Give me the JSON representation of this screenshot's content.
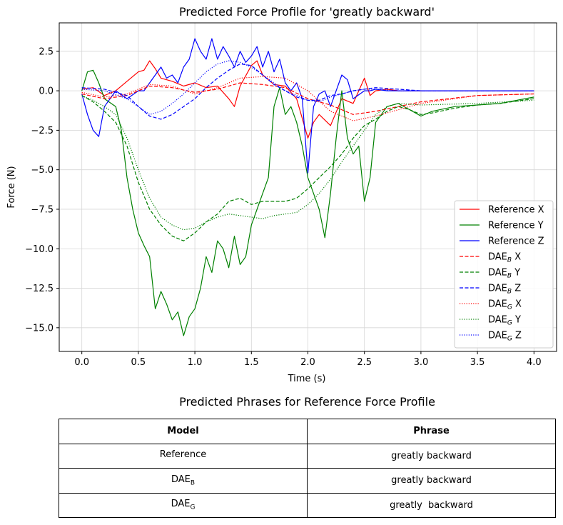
{
  "chart_data": {
    "type": "line",
    "title": "Predicted Force Profile for 'greatly backward'",
    "xlabel": "Time (s)",
    "ylabel": "Force (N)",
    "xlim": [
      -0.2,
      4.2
    ],
    "ylim": [
      -16.5,
      4.3
    ],
    "xticks": [
      0.0,
      0.5,
      1.0,
      1.5,
      2.0,
      2.5,
      3.0,
      3.5,
      4.0
    ],
    "xtick_labels": [
      "0.0",
      "0.5",
      "1.0",
      "1.5",
      "2.0",
      "2.5",
      "3.0",
      "3.5",
      "4.0"
    ],
    "yticks": [
      2.5,
      0.0,
      -2.5,
      -5.0,
      -7.5,
      -10.0,
      -12.5,
      -15.0
    ],
    "ytick_labels": [
      "2.5",
      "0.0",
      "−2.5",
      "−5.0",
      "−7.5",
      "−10.0",
      "−12.5",
      "−15.0"
    ],
    "grid": true,
    "legend_position": "lower-right",
    "series": [
      {
        "name": "Reference X",
        "name_base": "Reference X",
        "name_sub": "",
        "name_suffix": "",
        "color": "#ff0000",
        "style": "solid",
        "x": [
          0.0,
          0.1,
          0.2,
          0.3,
          0.4,
          0.5,
          0.55,
          0.6,
          0.65,
          0.7,
          0.8,
          0.9,
          1.0,
          1.1,
          1.2,
          1.3,
          1.35,
          1.4,
          1.5,
          1.55,
          1.6,
          1.7,
          1.8,
          1.9,
          2.0,
          2.05,
          2.1,
          2.2,
          2.3,
          2.4,
          2.5,
          2.55,
          2.6,
          2.7,
          2.8,
          3.0,
          3.5,
          4.0
        ],
        "y": [
          0.1,
          0.2,
          -0.3,
          0.0,
          0.6,
          1.2,
          1.3,
          1.9,
          1.4,
          0.8,
          0.6,
          0.3,
          0.5,
          0.2,
          0.3,
          -0.5,
          -1.0,
          0.3,
          1.6,
          1.9,
          1.0,
          0.4,
          0.3,
          -0.5,
          -3.0,
          -2.0,
          -1.5,
          -2.2,
          -0.5,
          -0.8,
          0.8,
          -0.3,
          0.0,
          0.1,
          0.0,
          0.0,
          0.0,
          0.0
        ]
      },
      {
        "name": "Reference Y",
        "name_base": "Reference Y",
        "name_sub": "",
        "name_suffix": "",
        "color": "#008000",
        "style": "solid",
        "x": [
          0.0,
          0.05,
          0.1,
          0.15,
          0.2,
          0.3,
          0.35,
          0.4,
          0.45,
          0.5,
          0.55,
          0.6,
          0.65,
          0.7,
          0.75,
          0.8,
          0.85,
          0.9,
          0.95,
          1.0,
          1.05,
          1.1,
          1.15,
          1.2,
          1.25,
          1.3,
          1.35,
          1.4,
          1.45,
          1.5,
          1.55,
          1.6,
          1.65,
          1.7,
          1.75,
          1.8,
          1.85,
          1.9,
          1.95,
          2.0,
          2.05,
          2.1,
          2.15,
          2.2,
          2.25,
          2.3,
          2.35,
          2.4,
          2.45,
          2.5,
          2.55,
          2.6,
          2.7,
          2.8,
          2.9,
          3.0,
          3.1,
          3.3,
          3.5,
          3.7,
          4.0
        ],
        "y": [
          0.0,
          1.2,
          1.3,
          0.5,
          -0.5,
          -1.0,
          -2.5,
          -5.5,
          -7.5,
          -9.0,
          -9.8,
          -10.5,
          -13.8,
          -12.7,
          -13.5,
          -14.5,
          -14.0,
          -15.5,
          -14.3,
          -13.8,
          -12.5,
          -10.5,
          -11.5,
          -9.5,
          -10.0,
          -11.2,
          -9.2,
          -11.0,
          -10.5,
          -8.5,
          -7.5,
          -6.5,
          -5.5,
          -1.0,
          0.2,
          -1.5,
          -1.0,
          -2.0,
          -3.5,
          -5.5,
          -6.5,
          -7.5,
          -9.3,
          -6.5,
          -3.0,
          0.0,
          -3.0,
          -4.0,
          -3.5,
          -7.0,
          -5.5,
          -2.0,
          -1.0,
          -0.8,
          -1.2,
          -1.6,
          -1.3,
          -1.0,
          -0.9,
          -0.8,
          -0.4
        ]
      },
      {
        "name": "Reference Z",
        "name_base": "Reference Z",
        "name_sub": "",
        "name_suffix": "",
        "color": "#0000ff",
        "style": "solid",
        "x": [
          0.0,
          0.05,
          0.1,
          0.15,
          0.2,
          0.3,
          0.4,
          0.5,
          0.55,
          0.6,
          0.65,
          0.7,
          0.75,
          0.8,
          0.85,
          0.9,
          0.95,
          1.0,
          1.05,
          1.1,
          1.15,
          1.2,
          1.25,
          1.3,
          1.35,
          1.4,
          1.45,
          1.5,
          1.55,
          1.6,
          1.65,
          1.7,
          1.75,
          1.8,
          1.85,
          1.9,
          1.95,
          2.0,
          2.05,
          2.1,
          2.15,
          2.2,
          2.3,
          2.35,
          2.4,
          2.5,
          2.55,
          2.6,
          2.7,
          2.8,
          3.0,
          3.5,
          4.0
        ],
        "y": [
          -0.2,
          -1.5,
          -2.5,
          -2.9,
          -1.0,
          0.0,
          -0.5,
          0.0,
          0.0,
          0.5,
          1.0,
          1.5,
          0.8,
          1.0,
          0.5,
          1.5,
          2.0,
          3.3,
          2.5,
          2.0,
          3.3,
          2.0,
          2.8,
          2.2,
          1.5,
          2.5,
          1.8,
          2.2,
          2.8,
          1.5,
          2.5,
          1.2,
          2.0,
          0.5,
          0.0,
          0.5,
          -0.5,
          -5.2,
          -1.0,
          -0.2,
          0.0,
          -1.0,
          1.0,
          0.7,
          -0.5,
          0.0,
          0.0,
          0.1,
          0.0,
          0.0,
          0.0,
          0.0,
          0.0
        ]
      },
      {
        "name": "DAE_B X",
        "name_base": "DAE",
        "name_sub": "B",
        "name_suffix": " X",
        "color": "#ff0000",
        "style": "dashed",
        "x": [
          0.0,
          0.2,
          0.4,
          0.6,
          0.8,
          1.0,
          1.2,
          1.4,
          1.6,
          1.8,
          2.0,
          2.2,
          2.4,
          2.6,
          2.8,
          3.0,
          3.5,
          4.0
        ],
        "y": [
          -0.2,
          -0.5,
          -0.3,
          0.3,
          0.2,
          -0.1,
          0.1,
          0.5,
          0.4,
          0.2,
          -0.5,
          -0.9,
          -1.5,
          -1.3,
          -1.0,
          -0.7,
          -0.3,
          -0.2
        ]
      },
      {
        "name": "DAE_B Y",
        "name_base": "DAE",
        "name_sub": "B",
        "name_suffix": " Y",
        "color": "#008000",
        "style": "dashed",
        "x": [
          0.0,
          0.1,
          0.2,
          0.3,
          0.4,
          0.5,
          0.6,
          0.7,
          0.8,
          0.9,
          1.0,
          1.1,
          1.2,
          1.3,
          1.4,
          1.5,
          1.6,
          1.7,
          1.8,
          1.9,
          2.0,
          2.1,
          2.2,
          2.3,
          2.4,
          2.5,
          2.6,
          2.7,
          2.8,
          2.9,
          3.0,
          3.1,
          3.3,
          3.5,
          3.7,
          4.0
        ],
        "y": [
          -0.3,
          -0.7,
          -1.3,
          -2.0,
          -3.5,
          -5.8,
          -7.5,
          -8.5,
          -9.2,
          -9.5,
          -9.0,
          -8.3,
          -7.8,
          -7.0,
          -6.8,
          -7.2,
          -7.0,
          -7.0,
          -7.0,
          -6.8,
          -6.2,
          -5.5,
          -4.8,
          -4.0,
          -3.0,
          -2.2,
          -1.8,
          -1.3,
          -1.0,
          -1.2,
          -1.5,
          -1.4,
          -1.1,
          -0.9,
          -0.8,
          -0.5
        ]
      },
      {
        "name": "DAE_B Z",
        "name_base": "DAE",
        "name_sub": "B",
        "name_suffix": " Z",
        "color": "#0000ff",
        "style": "dashed",
        "x": [
          0.0,
          0.2,
          0.4,
          0.5,
          0.6,
          0.7,
          0.8,
          0.9,
          1.0,
          1.1,
          1.2,
          1.3,
          1.4,
          1.5,
          1.6,
          1.7,
          1.8,
          1.9,
          2.0,
          2.1,
          2.2,
          2.3,
          2.4,
          2.5,
          2.6,
          2.8,
          3.0,
          3.5,
          4.0
        ],
        "y": [
          0.2,
          0.1,
          -0.3,
          -1.0,
          -1.6,
          -1.8,
          -1.5,
          -1.0,
          -0.5,
          0.2,
          0.8,
          1.3,
          1.7,
          1.6,
          1.0,
          0.4,
          0.0,
          -0.4,
          -0.6,
          -0.6,
          -0.3,
          -0.2,
          0.0,
          0.1,
          0.2,
          0.1,
          0.0,
          0.0,
          0.0
        ]
      },
      {
        "name": "DAE_G X",
        "name_base": "DAE",
        "name_sub": "G",
        "name_suffix": " X",
        "color": "#ff0000",
        "style": "dotted",
        "x": [
          0.0,
          0.2,
          0.4,
          0.6,
          0.8,
          1.0,
          1.2,
          1.4,
          1.6,
          1.8,
          2.0,
          2.2,
          2.4,
          2.6,
          2.8,
          3.0,
          3.5,
          4.0
        ],
        "y": [
          -0.1,
          -0.4,
          -0.2,
          0.4,
          0.3,
          -0.2,
          0.2,
          0.8,
          0.9,
          0.8,
          0.0,
          -1.3,
          -1.9,
          -1.6,
          -1.2,
          -0.8,
          -0.3,
          -0.2
        ]
      },
      {
        "name": "DAE_G Y",
        "name_base": "DAE",
        "name_sub": "G",
        "name_suffix": " Y",
        "color": "#008000",
        "style": "dotted",
        "x": [
          0.0,
          0.1,
          0.2,
          0.3,
          0.4,
          0.5,
          0.6,
          0.7,
          0.8,
          0.9,
          1.0,
          1.1,
          1.2,
          1.3,
          1.4,
          1.5,
          1.6,
          1.7,
          1.8,
          1.9,
          2.0,
          2.1,
          2.2,
          2.3,
          2.4,
          2.5,
          2.6,
          2.7,
          2.8,
          3.0,
          3.5,
          4.0
        ],
        "y": [
          -0.3,
          -0.6,
          -1.0,
          -1.5,
          -3.0,
          -5.0,
          -6.8,
          -8.0,
          -8.5,
          -8.8,
          -8.7,
          -8.3,
          -8.0,
          -7.8,
          -7.9,
          -8.0,
          -8.1,
          -7.9,
          -7.8,
          -7.7,
          -7.2,
          -6.5,
          -5.6,
          -4.5,
          -3.5,
          -2.5,
          -1.5,
          -1.0,
          -0.8,
          -0.9,
          -0.8,
          -0.6
        ]
      },
      {
        "name": "DAE_G Z",
        "name_base": "DAE",
        "name_sub": "G",
        "name_suffix": " Z",
        "color": "#0000ff",
        "style": "dotted",
        "x": [
          0.0,
          0.2,
          0.4,
          0.5,
          0.6,
          0.7,
          0.8,
          0.9,
          1.0,
          1.1,
          1.2,
          1.3,
          1.4,
          1.5,
          1.6,
          1.7,
          1.8,
          1.9,
          2.0,
          2.1,
          2.2,
          2.3,
          2.4,
          2.5,
          2.6,
          2.8,
          3.0,
          3.5,
          4.0
        ],
        "y": [
          0.1,
          0.0,
          -0.5,
          -1.0,
          -1.5,
          -1.3,
          -0.8,
          -0.2,
          0.5,
          1.2,
          1.7,
          1.9,
          1.8,
          1.5,
          1.0,
          0.5,
          0.0,
          -0.3,
          -0.6,
          -0.7,
          -0.4,
          -0.2,
          0.0,
          0.1,
          0.1,
          0.0,
          0.0,
          0.0,
          0.0
        ]
      }
    ]
  },
  "table": {
    "title": "Predicted Phrases for Reference Force Profile",
    "headers": [
      "Model",
      "Phrase"
    ],
    "rows": [
      {
        "model": "Reference",
        "model_sub": "",
        "phrase": "greatly backward"
      },
      {
        "model": "DAE",
        "model_sub": "B",
        "phrase": "greatly backward"
      },
      {
        "model": "DAE",
        "model_sub": "G",
        "phrase": "greatly  backward"
      }
    ]
  }
}
